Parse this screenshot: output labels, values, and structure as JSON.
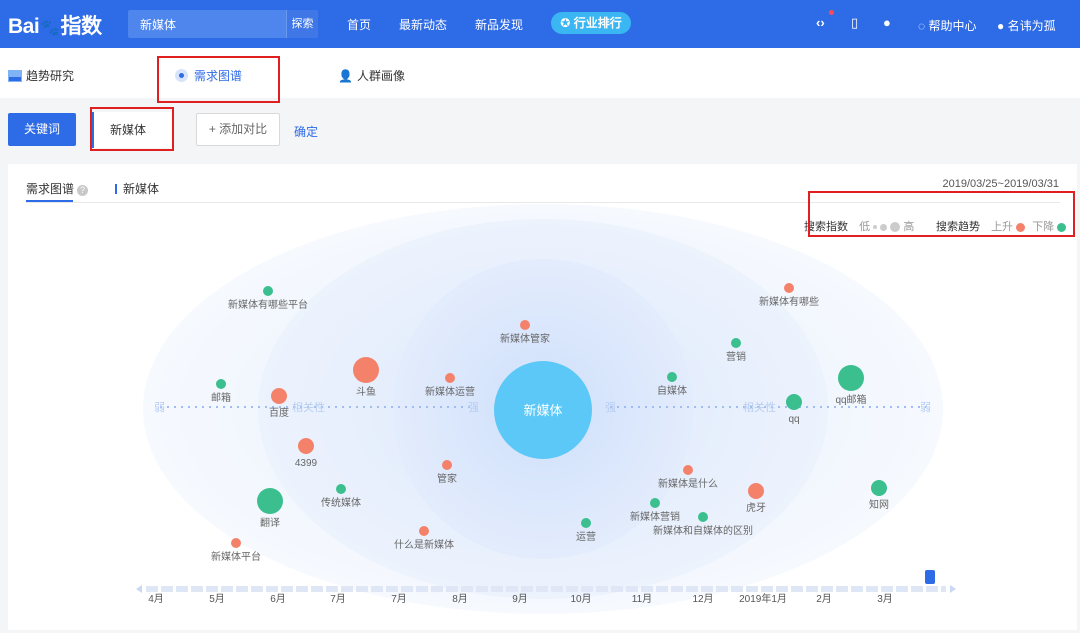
{
  "topbar": {
    "logo_text_left": "Bai",
    "logo_text_mid": "du",
    "logo_text_right": "指数",
    "search_value": "新媒体",
    "search_button": "探索",
    "nav": [
      "首页",
      "最新动态",
      "新品发现"
    ],
    "rank_button": "行业排行",
    "help_label": "帮助中心",
    "user_label": "名讳为孤"
  },
  "subtabs": {
    "trend": "趋势研究",
    "demand": "需求图谱",
    "crowd": "人群画像"
  },
  "keyword_row": {
    "keyword_button": "关键词",
    "keyword_value": "新媒体",
    "add_compare": "+ 添加对比",
    "confirm": "确定"
  },
  "panel": {
    "tab_label": "需求图谱",
    "help_glyph": "?",
    "keyword_tag": "新媒体",
    "date_range": "2019/03/25~2019/03/31",
    "legend": {
      "search_index": "搜索指数",
      "low": "低",
      "high": "高",
      "search_trend": "搜索趋势",
      "rise": "上升",
      "fall": "下降",
      "rise_color": "#f4826b",
      "fall_color": "#3bbf8f"
    }
  },
  "graph": {
    "center_label": "新媒体",
    "axis_weak": "弱",
    "axis_strong": "强",
    "axis_relevance": "相关性",
    "nodes": [
      {
        "label": "新媒体有哪些平台",
        "trend": "down",
        "size": "small"
      },
      {
        "label": "新媒体有哪些",
        "trend": "up",
        "size": "small"
      },
      {
        "label": "新媒体管家",
        "trend": "up",
        "size": "small"
      },
      {
        "label": "营销",
        "trend": "down",
        "size": "small"
      },
      {
        "label": "邮箱",
        "trend": "down",
        "size": "small"
      },
      {
        "label": "百度",
        "trend": "up",
        "size": "medium"
      },
      {
        "label": "斗鱼",
        "trend": "up",
        "size": "large"
      },
      {
        "label": "新媒体运营",
        "trend": "up",
        "size": "small"
      },
      {
        "label": "自媒体",
        "trend": "down",
        "size": "small"
      },
      {
        "label": "qq邮箱",
        "trend": "down",
        "size": "large"
      },
      {
        "label": "qq",
        "trend": "down",
        "size": "medium"
      },
      {
        "label": "4399",
        "trend": "up",
        "size": "medium"
      },
      {
        "label": "管家",
        "trend": "up",
        "size": "small"
      },
      {
        "label": "新媒体是什么",
        "trend": "up",
        "size": "small"
      },
      {
        "label": "传统媒体",
        "trend": "down",
        "size": "small"
      },
      {
        "label": "虎牙",
        "trend": "up",
        "size": "medium"
      },
      {
        "label": "知网",
        "trend": "down",
        "size": "medium"
      },
      {
        "label": "翻译",
        "trend": "down",
        "size": "large"
      },
      {
        "label": "新媒体营销",
        "trend": "down",
        "size": "small"
      },
      {
        "label": "运营",
        "trend": "down",
        "size": "small"
      },
      {
        "label": "新媒体和自媒体的区别",
        "trend": "down",
        "size": "small"
      },
      {
        "label": "什么是新媒体",
        "trend": "up",
        "size": "small"
      },
      {
        "label": "新媒体平台",
        "trend": "up",
        "size": "small"
      }
    ],
    "timeline": [
      "4月",
      "5月",
      "6月",
      "7月",
      "7月",
      "8月",
      "9月",
      "10月",
      "11月",
      "12月",
      "2019年1月",
      "2月",
      "3月"
    ]
  }
}
